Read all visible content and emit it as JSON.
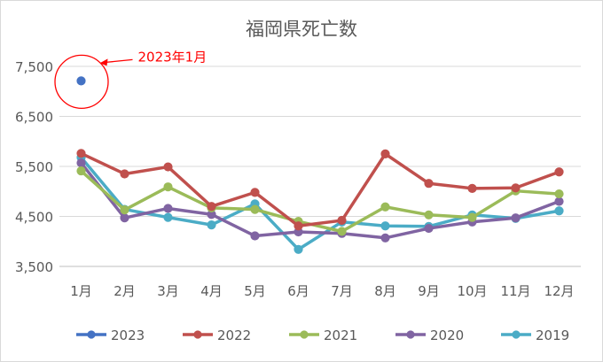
{
  "chart_data": {
    "type": "line",
    "title": "福岡県死亡数",
    "categories": [
      "1月",
      "2月",
      "3月",
      "4月",
      "5月",
      "6月",
      "7月",
      "8月",
      "9月",
      "10月",
      "11月",
      "12月"
    ],
    "yticks": [
      3500,
      4500,
      5500,
      6500,
      7500
    ],
    "ytick_labels": [
      "3,500",
      "4,500",
      "5,500",
      "6,500",
      "7,500"
    ],
    "ylim": [
      3500,
      7500
    ],
    "grid": true,
    "legend_position": "bottom",
    "series": [
      {
        "name": "2023",
        "color": "#4472C4",
        "values": [
          7210,
          null,
          null,
          null,
          null,
          null,
          null,
          null,
          null,
          null,
          null,
          null
        ]
      },
      {
        "name": "2022",
        "color": "#C0504D",
        "values": [
          5760,
          5350,
          5490,
          4700,
          4980,
          4310,
          4420,
          5750,
          5160,
          5060,
          5070,
          5390
        ]
      },
      {
        "name": "2021",
        "color": "#9BBB59",
        "values": [
          5410,
          4630,
          5090,
          4670,
          4640,
          4400,
          4200,
          4690,
          4530,
          4480,
          5010,
          4950
        ]
      },
      {
        "name": "2020",
        "color": "#8064A2",
        "values": [
          5570,
          4470,
          4660,
          4540,
          4110,
          4190,
          4160,
          4070,
          4260,
          4390,
          4470,
          4800
        ]
      },
      {
        "name": "2019",
        "color": "#4BACC6",
        "values": [
          5680,
          4640,
          4480,
          4330,
          4750,
          3840,
          4390,
          4310,
          4300,
          4530,
          4460,
          4610
        ]
      }
    ],
    "annotation": {
      "text": "2023年1月",
      "color": "#FF0000",
      "target_series": "2023",
      "target_index": 0
    }
  }
}
